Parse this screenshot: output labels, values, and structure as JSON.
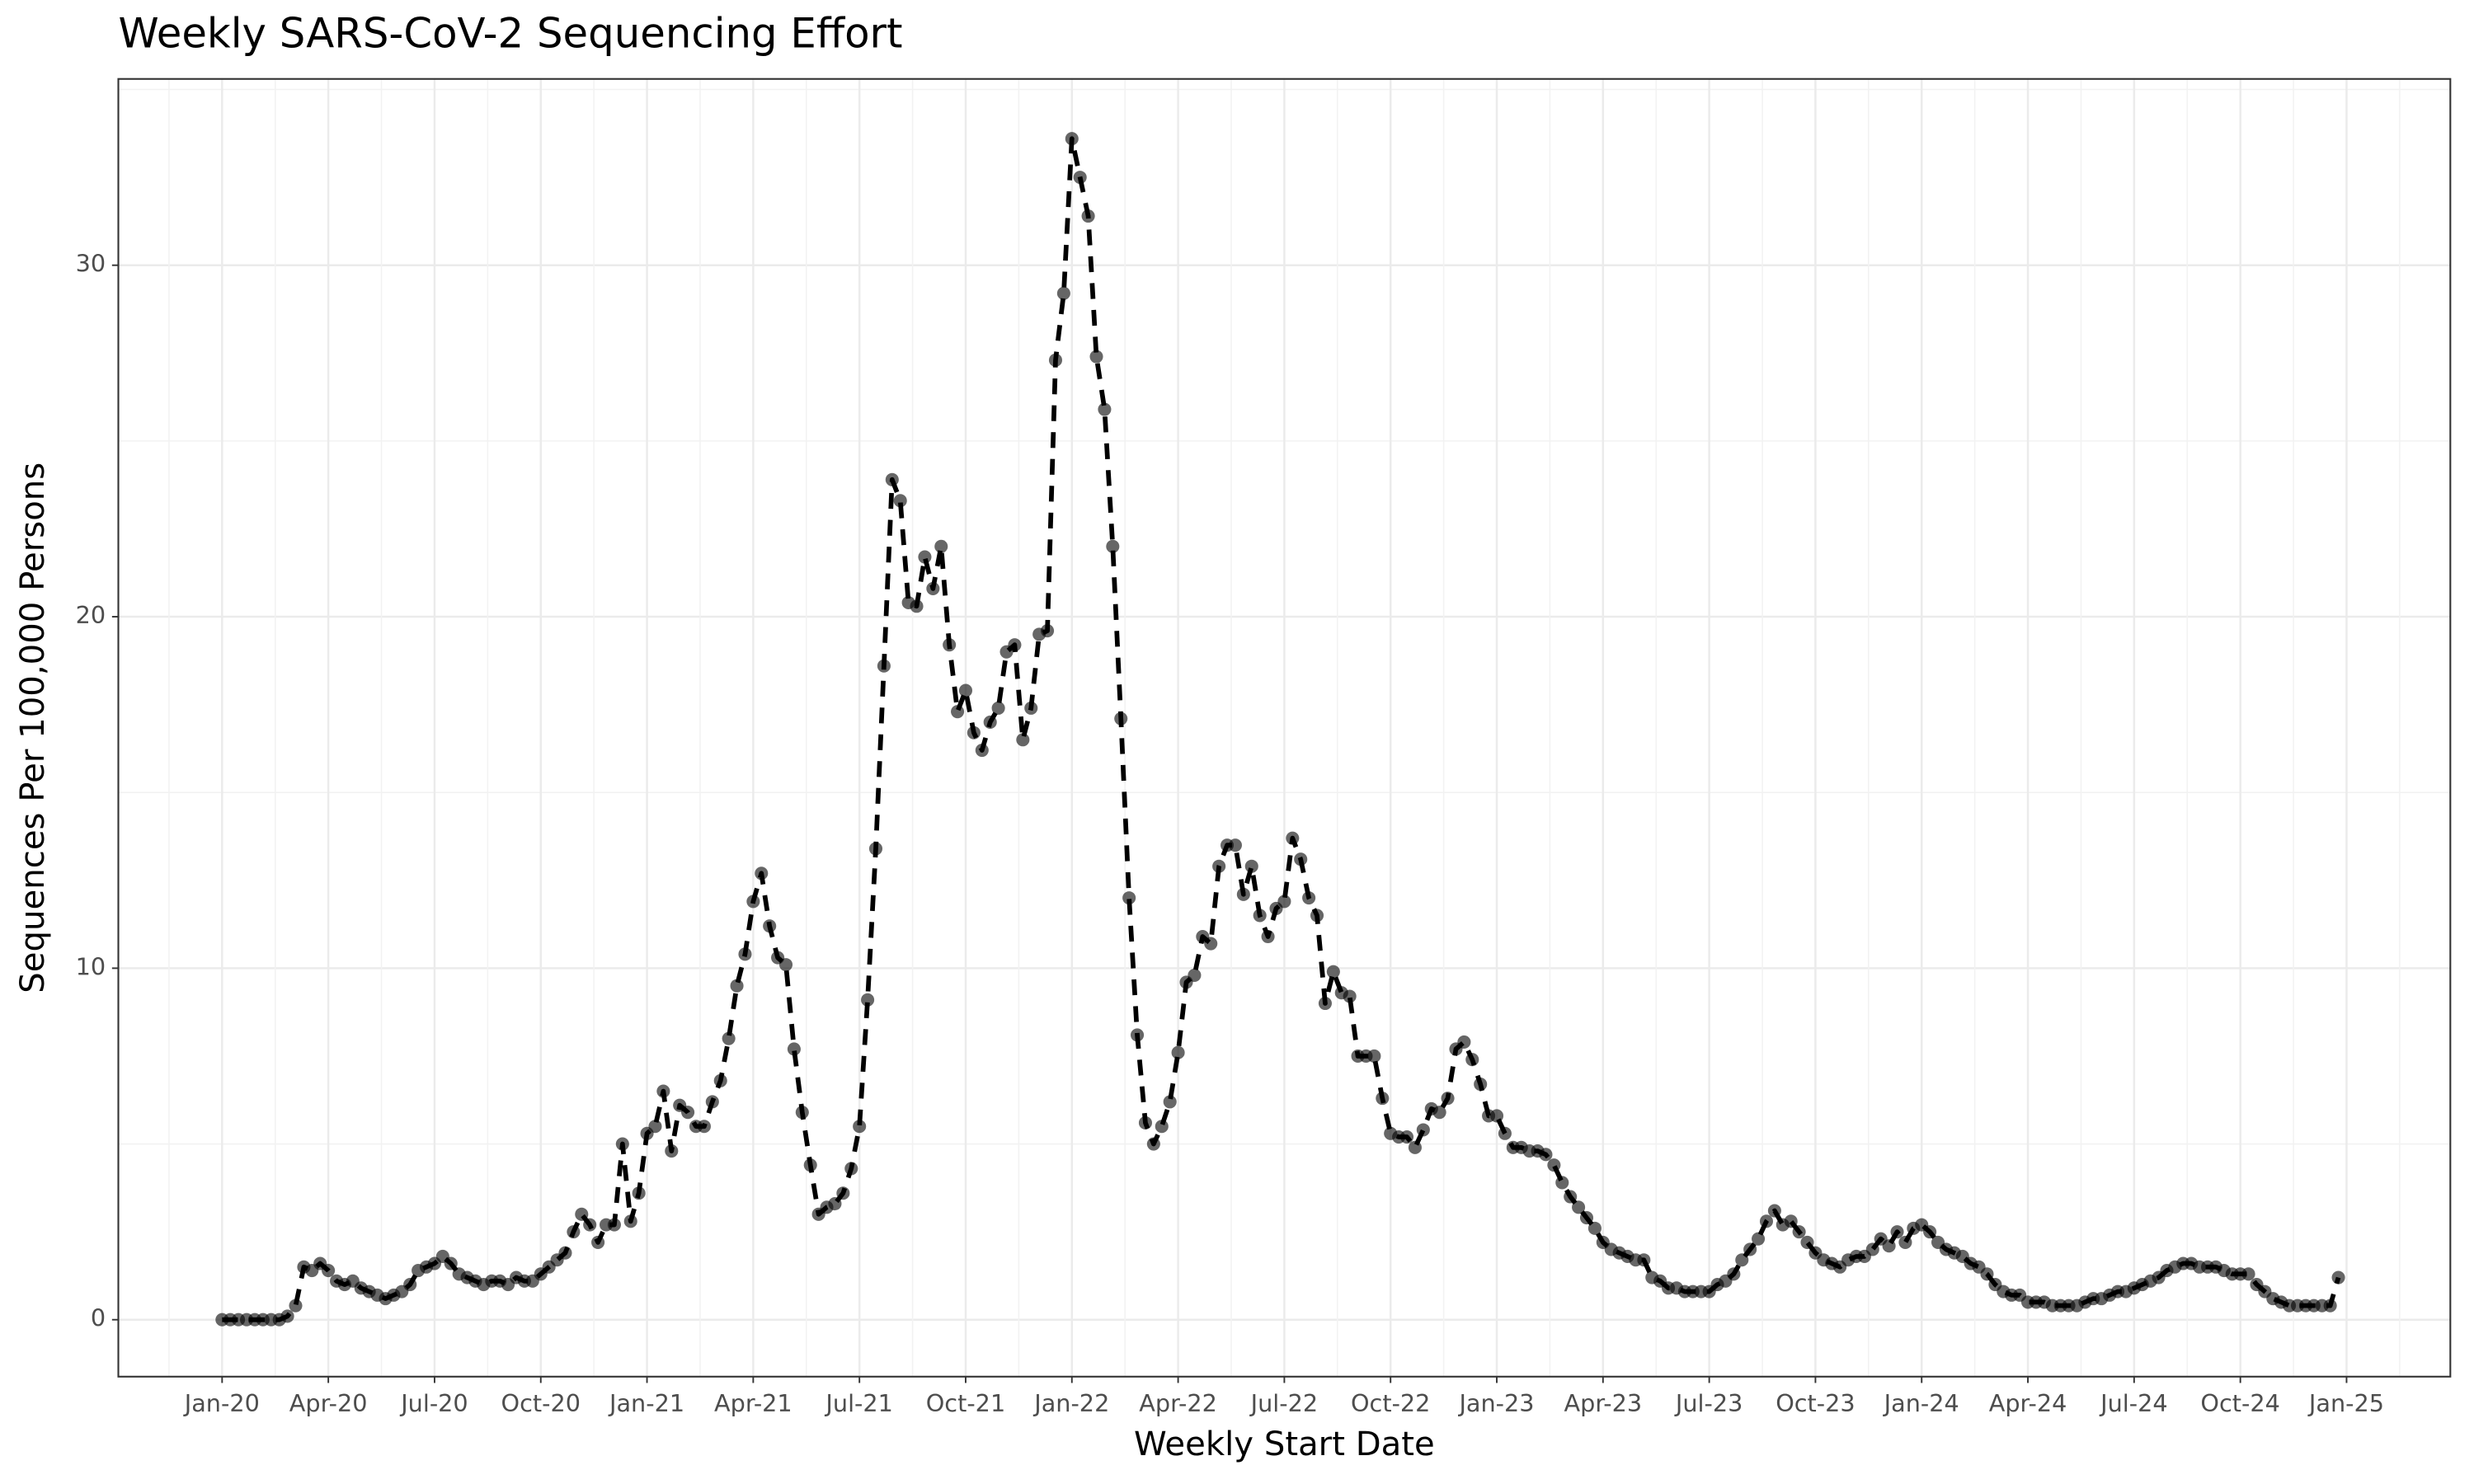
{
  "chart_data": {
    "type": "line",
    "title": "Weekly SARS-CoV-2 Sequencing Effort",
    "x_label": "Weekly Start Date",
    "y_label": "Sequences Per 100,000 Persons",
    "categories": [
      "Jan-20",
      null,
      null,
      null,
      null,
      null,
      null,
      null,
      null,
      null,
      null,
      null,
      null,
      "Apr-20",
      null,
      null,
      null,
      null,
      null,
      null,
      null,
      null,
      null,
      null,
      null,
      null,
      "Jul-20",
      null,
      null,
      null,
      null,
      null,
      null,
      null,
      null,
      null,
      null,
      null,
      null,
      "Oct-20",
      null,
      null,
      null,
      null,
      null,
      null,
      null,
      null,
      null,
      null,
      null,
      null,
      "Jan-21",
      null,
      null,
      null,
      null,
      null,
      null,
      null,
      null,
      null,
      null,
      null,
      null,
      "Apr-21",
      null,
      null,
      null,
      null,
      null,
      null,
      null,
      null,
      null,
      null,
      null,
      null,
      "Jul-21",
      null,
      null,
      null,
      null,
      null,
      null,
      null,
      null,
      null,
      null,
      null,
      null,
      "Oct-21",
      null,
      null,
      null,
      null,
      null,
      null,
      null,
      null,
      null,
      null,
      null,
      null,
      "Jan-22",
      null,
      null,
      null,
      null,
      null,
      null,
      null,
      null,
      null,
      null,
      null,
      null,
      "Apr-22",
      null,
      null,
      null,
      null,
      null,
      null,
      null,
      null,
      null,
      null,
      null,
      null,
      "Jul-22",
      null,
      null,
      null,
      null,
      null,
      null,
      null,
      null,
      null,
      null,
      null,
      null,
      "Oct-22",
      null,
      null,
      null,
      null,
      null,
      null,
      null,
      null,
      null,
      null,
      null,
      null,
      "Jan-23",
      null,
      null,
      null,
      null,
      null,
      null,
      null,
      null,
      null,
      null,
      null,
      null,
      "Apr-23",
      null,
      null,
      null,
      null,
      null,
      null,
      null,
      null,
      null,
      null,
      null,
      null,
      "Jul-23",
      null,
      null,
      null,
      null,
      null,
      null,
      null,
      null,
      null,
      null,
      null,
      null,
      "Oct-23",
      null,
      null,
      null,
      null,
      null,
      null,
      null,
      null,
      null,
      null,
      null,
      null,
      "Jan-24",
      null,
      null,
      null,
      null,
      null,
      null,
      null,
      null,
      null,
      null,
      null,
      null,
      "Apr-24",
      null,
      null,
      null,
      null,
      null,
      null,
      null,
      null,
      null,
      null,
      null,
      null,
      "Jul-24",
      null,
      null,
      null,
      null,
      null,
      null,
      null,
      null,
      null,
      null,
      null,
      null,
      "Oct-24",
      null,
      null,
      null,
      null,
      null,
      null,
      null,
      null,
      null,
      null,
      null,
      null,
      "Jan-25"
    ],
    "values": [
      0,
      0,
      0,
      0,
      0,
      0,
      0,
      0,
      0.1,
      0.4,
      1.5,
      1.4,
      1.6,
      1.4,
      1.1,
      1.0,
      1.1,
      0.9,
      0.8,
      0.7,
      0.6,
      0.7,
      0.8,
      1.0,
      1.4,
      1.5,
      1.6,
      1.8,
      1.6,
      1.3,
      1.2,
      1.1,
      1.0,
      1.1,
      1.1,
      1.0,
      1.2,
      1.1,
      1.1,
      1.3,
      1.5,
      1.7,
      1.9,
      2.5,
      3.0,
      2.7,
      2.2,
      2.7,
      2.7,
      5.0,
      2.8,
      3.6,
      5.3,
      5.5,
      6.5,
      4.8,
      6.1,
      5.9,
      5.5,
      5.5,
      6.2,
      6.8,
      8.0,
      9.5,
      10.4,
      11.9,
      12.7,
      11.2,
      10.3,
      10.1,
      7.7,
      5.9,
      4.4,
      3.0,
      3.2,
      3.3,
      3.6,
      4.3,
      5.5,
      9.1,
      13.4,
      18.6,
      23.9,
      23.3,
      20.4,
      20.3,
      21.7,
      20.8,
      22.0,
      19.2,
      17.3,
      17.9,
      16.7,
      16.2,
      17.0,
      17.4,
      19.0,
      19.2,
      16.5,
      17.4,
      19.5,
      19.6,
      27.3,
      29.2,
      33.6,
      32.5,
      31.4,
      27.4,
      25.9,
      22.0,
      17.1,
      12.0,
      8.1,
      5.6,
      5.0,
      5.5,
      6.2,
      7.6,
      9.6,
      9.8,
      10.9,
      10.7,
      12.9,
      13.5,
      13.5,
      12.1,
      12.9,
      11.5,
      10.9,
      11.7,
      11.9,
      13.7,
      13.1,
      12.0,
      11.5,
      9.0,
      9.9,
      9.3,
      9.2,
      7.5,
      7.5,
      7.5,
      6.3,
      5.3,
      5.2,
      5.2,
      4.9,
      5.4,
      6.0,
      5.9,
      6.3,
      7.7,
      7.9,
      7.4,
      6.7,
      5.8,
      5.8,
      5.3,
      4.9,
      4.9,
      4.8,
      4.8,
      4.7,
      4.4,
      3.9,
      3.5,
      3.2,
      2.9,
      2.6,
      2.2,
      2.0,
      1.9,
      1.8,
      1.7,
      1.7,
      1.2,
      1.1,
      0.9,
      0.9,
      0.8,
      0.8,
      0.8,
      0.8,
      1.0,
      1.1,
      1.3,
      1.7,
      2.0,
      2.3,
      2.8,
      3.1,
      2.7,
      2.8,
      2.5,
      2.2,
      1.9,
      1.7,
      1.6,
      1.5,
      1.7,
      1.8,
      1.8,
      2.0,
      2.3,
      2.1,
      2.5,
      2.2,
      2.6,
      2.7,
      2.5,
      2.2,
      2.0,
      1.9,
      1.8,
      1.6,
      1.5,
      1.3,
      1.0,
      0.8,
      0.7,
      0.7,
      0.5,
      0.5,
      0.5,
      0.4,
      0.4,
      0.4,
      0.4,
      0.5,
      0.6,
      0.6,
      0.7,
      0.8,
      0.8,
      0.9,
      1.0,
      1.1,
      1.2,
      1.4,
      1.5,
      1.6,
      1.6,
      1.5,
      1.5,
      1.5,
      1.4,
      1.3,
      1.3,
      1.3,
      1.0,
      0.8,
      0.6,
      0.5,
      0.4,
      0.4,
      0.4,
      0.4,
      0.4,
      0.4,
      1.2,
      null
    ],
    "color": "#000000",
    "ylim": [
      -1.62,
      35.3
    ],
    "yticks": [
      0,
      10,
      20,
      30
    ],
    "grid": true
  }
}
